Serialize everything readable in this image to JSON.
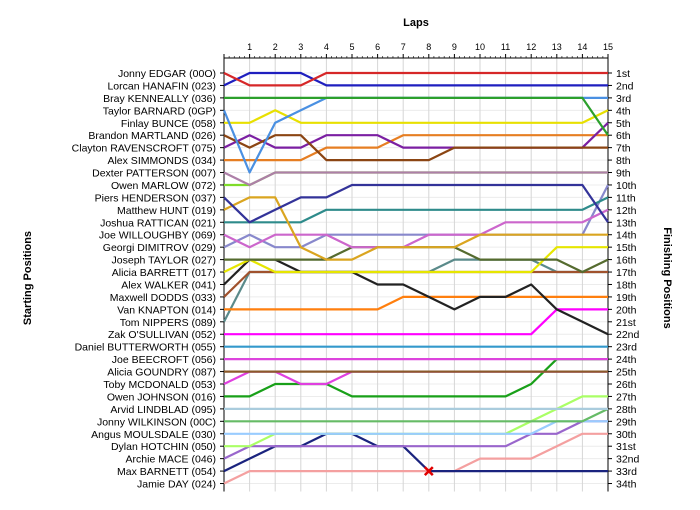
{
  "chart_data": {
    "type": "line",
    "title": "Laps",
    "ylabel_left": "Starting Positions",
    "ylabel_right": "Finishing Positions",
    "laps": [
      0,
      1,
      2,
      3,
      4,
      5,
      6,
      7,
      8,
      9,
      10,
      11,
      12,
      13,
      14,
      15
    ],
    "lap_labels": [
      "1",
      "2",
      "3",
      "4",
      "5",
      "6",
      "7",
      "8",
      "9",
      "10",
      "11",
      "12",
      "13",
      "14",
      "15"
    ],
    "finishing_labels": [
      "1st",
      "2nd",
      "3rd",
      "4th",
      "5th",
      "6th",
      "7th",
      "8th",
      "9th",
      "10th",
      "11th",
      "12th",
      "13th",
      "14th",
      "15th",
      "16th",
      "17th",
      "18th",
      "19th",
      "20th",
      "21st",
      "22nd",
      "23rd",
      "24th",
      "25th",
      "26th",
      "27th",
      "28th",
      "29th",
      "30th",
      "31st",
      "32nd",
      "33rd",
      "34th"
    ],
    "retirement_marker": {
      "lap": 8,
      "position": 33
    },
    "series": [
      {
        "name": "Jonny EDGAR (00O)",
        "color": "#d62728",
        "positions": [
          1,
          2,
          2,
          2,
          1,
          1,
          1,
          1,
          1,
          1,
          1,
          1,
          1,
          1,
          1,
          1
        ]
      },
      {
        "name": "Lorcan HANAFIN (023)",
        "color": "#1f1fbf",
        "positions": [
          2,
          1,
          1,
          1,
          2,
          2,
          2,
          2,
          2,
          2,
          2,
          2,
          2,
          2,
          2,
          2
        ]
      },
      {
        "name": "Bray KENNEALLY (036)",
        "color": "#2ca02c",
        "positions": [
          3,
          3,
          3,
          3,
          3,
          3,
          3,
          3,
          3,
          3,
          3,
          3,
          3,
          3,
          3,
          6
        ]
      },
      {
        "name": "Taylor BARNARD (0GP)",
        "color": "#4a90e2",
        "positions": [
          4,
          9,
          5,
          4,
          3,
          3,
          3,
          3,
          3,
          3,
          3,
          3,
          3,
          3,
          3,
          3
        ]
      },
      {
        "name": "Finlay BUNCE (058)",
        "color": "#e8e000",
        "positions": [
          5,
          5,
          4,
          5,
          5,
          5,
          5,
          5,
          5,
          5,
          5,
          5,
          5,
          5,
          5,
          4
        ]
      },
      {
        "name": "Brandon MARTLAND (026)",
        "color": "#8b4513",
        "positions": [
          6,
          7,
          6,
          6,
          8,
          8,
          8,
          8,
          8,
          7,
          7,
          7,
          7,
          7,
          7,
          7
        ]
      },
      {
        "name": "Clayton RAVENSCROFT (075)",
        "color": "#7b1fa2",
        "positions": [
          7,
          6,
          7,
          7,
          6,
          6,
          6,
          7,
          7,
          7,
          7,
          7,
          7,
          7,
          7,
          5
        ]
      },
      {
        "name": "Alex SIMMONDS (034)",
        "color": "#e67e22",
        "positions": [
          8,
          8,
          8,
          8,
          7,
          7,
          7,
          6,
          6,
          6,
          6,
          6,
          6,
          6,
          6,
          6
        ]
      },
      {
        "name": "Dexter PATTERSON (007)",
        "color": "#ad7fa8",
        "positions": [
          9,
          10,
          9,
          9,
          9,
          9,
          9,
          9,
          9,
          9,
          9,
          9,
          9,
          9,
          9,
          9
        ]
      },
      {
        "name": "Owen MARLOW (072)",
        "color": "#7fdc2a",
        "positions": [
          10,
          10,
          9,
          9,
          9,
          9,
          9,
          9,
          9,
          9,
          9,
          9,
          9,
          9,
          9,
          9
        ]
      },
      {
        "name": "Piers HENDERSON (037)",
        "color": "#333399",
        "positions": [
          11,
          13,
          12,
          11,
          11,
          10,
          10,
          10,
          10,
          10,
          10,
          10,
          10,
          10,
          10,
          13
        ]
      },
      {
        "name": "Matthew HUNT (019)",
        "color": "#daa520",
        "positions": [
          12,
          11,
          11,
          15,
          16,
          16,
          15,
          15,
          15,
          15,
          14,
          14,
          14,
          14,
          14,
          14
        ]
      },
      {
        "name": "Joshua RATTICAN (021)",
        "color": "#2e8b8b",
        "positions": [
          13,
          13,
          13,
          13,
          12,
          12,
          12,
          12,
          12,
          12,
          12,
          12,
          12,
          12,
          12,
          11
        ]
      },
      {
        "name": "Joe WILLOUGHBY (069)",
        "color": "#cc66cc",
        "positions": [
          14,
          15,
          14,
          14,
          14,
          15,
          15,
          15,
          14,
          14,
          14,
          13,
          13,
          13,
          13,
          12
        ]
      },
      {
        "name": "Georgi DIMITROV (029)",
        "color": "#8888cc",
        "positions": [
          15,
          14,
          15,
          15,
          14,
          14,
          14,
          14,
          14,
          14,
          14,
          14,
          14,
          14,
          14,
          10
        ]
      },
      {
        "name": "Joseph TAYLOR (027)",
        "color": "#556b2f",
        "positions": [
          16,
          16,
          16,
          16,
          16,
          15,
          15,
          15,
          15,
          15,
          16,
          16,
          16,
          16,
          17,
          16
        ]
      },
      {
        "name": "Alicia BARRETT (017)",
        "color": "#e6e600",
        "positions": [
          17,
          16,
          17,
          17,
          17,
          17,
          17,
          17,
          17,
          17,
          17,
          17,
          17,
          15,
          15,
          15
        ]
      },
      {
        "name": "Alex WALKER (041)",
        "color": "#222222",
        "positions": [
          18,
          16,
          16,
          17,
          17,
          17,
          18,
          18,
          19,
          20,
          19,
          19,
          18,
          20,
          21,
          22
        ]
      },
      {
        "name": "Maxwell DODDS (033)",
        "color": "#a0522d",
        "positions": [
          19,
          17,
          17,
          17,
          17,
          17,
          17,
          17,
          17,
          17,
          17,
          17,
          17,
          17,
          17,
          17
        ]
      },
      {
        "name": "Van KNAPTON (014)",
        "color": "#ff7f0e",
        "positions": [
          20,
          20,
          20,
          20,
          20,
          20,
          20,
          19,
          19,
          19,
          19,
          19,
          19,
          19,
          19,
          19
        ]
      },
      {
        "name": "Tom NIPPERS (089)",
        "color": "#5a8a8a",
        "positions": [
          21,
          17,
          17,
          17,
          17,
          17,
          17,
          17,
          17,
          16,
          16,
          16,
          16,
          17,
          17,
          17
        ]
      },
      {
        "name": "Zak O'SULLIVAN (052)",
        "color": "#ff00ff",
        "positions": [
          22,
          22,
          22,
          22,
          22,
          22,
          22,
          22,
          22,
          22,
          22,
          22,
          22,
          20,
          20,
          20
        ]
      },
      {
        "name": "Daniel BUTTERWORTH (055)",
        "color": "#3399cc",
        "positions": [
          23,
          23,
          23,
          23,
          23,
          23,
          23,
          23,
          23,
          23,
          23,
          23,
          23,
          23,
          23,
          23
        ]
      },
      {
        "name": "Joe BEECROFT (056)",
        "color": "#dd44dd",
        "positions": [
          24,
          24,
          24,
          24,
          24,
          24,
          24,
          24,
          24,
          24,
          24,
          24,
          24,
          24,
          24,
          24
        ]
      },
      {
        "name": "Alicia GOUNDRY (087)",
        "color": "#8b5a2b",
        "positions": [
          25,
          25,
          25,
          25,
          25,
          25,
          25,
          25,
          25,
          25,
          25,
          25,
          25,
          25,
          25,
          25
        ]
      },
      {
        "name": "Toby MCDONALD (053)",
        "color": "#e040e0",
        "positions": [
          26,
          25,
          25,
          26,
          26,
          25,
          25,
          25,
          25,
          25,
          25,
          25,
          25,
          25,
          25,
          25
        ]
      },
      {
        "name": "Owen JOHNSON (016)",
        "color": "#19a019",
        "positions": [
          27,
          27,
          26,
          26,
          26,
          27,
          27,
          27,
          27,
          27,
          27,
          27,
          26,
          24,
          24,
          24
        ]
      },
      {
        "name": "Arvid LINDBLAD (095)",
        "color": "#aaccdd",
        "positions": [
          28,
          28,
          28,
          28,
          28,
          28,
          28,
          28,
          28,
          28,
          28,
          28,
          28,
          28,
          28,
          28
        ]
      },
      {
        "name": "Jonny WILKINSON (00C)",
        "color": "#66bb66",
        "positions": [
          29,
          29,
          29,
          29,
          29,
          29,
          29,
          29,
          29,
          29,
          29,
          29,
          29,
          29,
          29,
          28
        ]
      },
      {
        "name": "Angus MOULSDALE (030)",
        "color": "#99ccff",
        "positions": [
          30,
          30,
          30,
          30,
          30,
          30,
          30,
          30,
          30,
          30,
          30,
          30,
          30,
          29,
          29,
          29
        ]
      },
      {
        "name": "Dylan HOTCHIN (050)",
        "color": "#aaff66",
        "positions": [
          31,
          31,
          30,
          30,
          30,
          30,
          30,
          30,
          30,
          30,
          30,
          30,
          29,
          28,
          27,
          27
        ]
      },
      {
        "name": "Archie MACE (046)",
        "color": "#9966cc",
        "positions": [
          32,
          31,
          31,
          31,
          31,
          31,
          31,
          31,
          31,
          31,
          31,
          31,
          30,
          30,
          29,
          29
        ]
      },
      {
        "name": "Max BARNETT (054)",
        "color": "#1a237e",
        "positions": [
          33,
          32,
          31,
          31,
          30,
          30,
          31,
          31,
          33,
          33,
          33,
          33,
          33,
          33,
          33,
          33
        ]
      },
      {
        "name": "Jamie DAY (024)",
        "color": "#f4a0a0",
        "positions": [
          34,
          33,
          33,
          33,
          33,
          33,
          33,
          33,
          33,
          33,
          32,
          32,
          32,
          31,
          30,
          30
        ]
      }
    ]
  }
}
